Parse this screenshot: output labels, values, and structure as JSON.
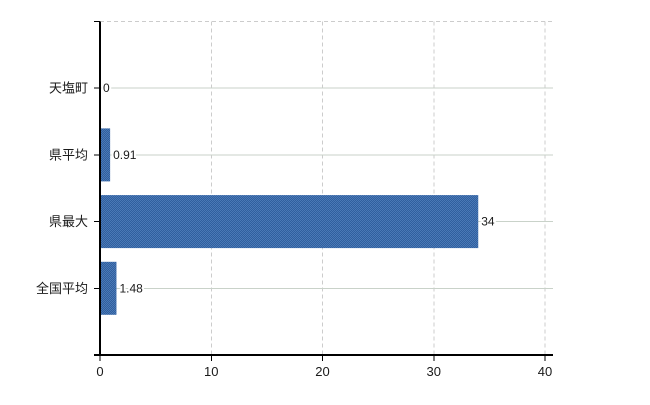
{
  "chart_data": {
    "type": "bar",
    "orientation": "horizontal",
    "title": "",
    "categories": [
      "天塩町",
      "県平均",
      "県最大",
      "全国平均"
    ],
    "values": [
      0,
      0.91,
      34,
      1.48
    ],
    "value_labels": [
      "0",
      "0.91",
      "34",
      "1.48"
    ],
    "x_tick_labels": [
      "0",
      "10",
      "20",
      "30",
      "40"
    ],
    "x_tick_values": [
      0,
      10,
      20,
      30,
      40
    ],
    "xlim": [
      0,
      40.7
    ],
    "xlabel": "",
    "ylabel": "",
    "legend_position": "none",
    "grid": {
      "vertical_style": "dashed",
      "horizontal_style": "solid",
      "top_border_style": "dashed"
    },
    "colors": {
      "bar_light": "#4a79b6",
      "bar_dark": "#305f9e",
      "axis": "#000000",
      "grid_horizontal": "#c9d2c9",
      "grid_vertical": "#cccccc",
      "text": "#1a1a1a",
      "background": "#ffffff"
    }
  }
}
